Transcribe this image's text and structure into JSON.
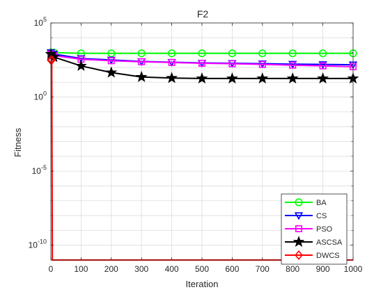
{
  "chart_data": {
    "type": "line",
    "title": "F2",
    "xlabel": "Iteration",
    "ylabel": "Fitness",
    "xlim": [
      0,
      1000
    ],
    "ylim_log10": [
      -11,
      5
    ],
    "y_scale": "log",
    "x_ticks": [
      0,
      100,
      200,
      300,
      400,
      500,
      600,
      700,
      800,
      900,
      1000
    ],
    "x_tick_labels": [
      "0",
      "100",
      "200",
      "300",
      "400",
      "500",
      "600",
      "700",
      "800",
      "900",
      "1000"
    ],
    "y_ticks_log10": [
      -10,
      -5,
      0,
      5
    ],
    "y_tick_labels": [
      {
        "base": "10",
        "exp": "-10"
      },
      {
        "base": "10",
        "exp": "-5"
      },
      {
        "base": "10",
        "exp": "0"
      },
      {
        "base": "10",
        "exp": "5"
      }
    ],
    "grid": true,
    "legend_position": "bottom-right",
    "series": [
      {
        "name": "BA",
        "color": "#00ff00",
        "marker": "circle",
        "x": [
          0,
          10,
          100,
          200,
          300,
          400,
          500,
          600,
          700,
          800,
          900,
          1000
        ],
        "y_log10": [
          3.0,
          3.0,
          2.95,
          2.95,
          2.95,
          2.95,
          2.95,
          2.95,
          2.95,
          2.95,
          2.95,
          2.95
        ]
      },
      {
        "name": "CS",
        "color": "#0000ff",
        "marker": "triangle-down",
        "x": [
          0,
          10,
          100,
          200,
          300,
          400,
          500,
          600,
          700,
          800,
          900,
          1000
        ],
        "y_log10": [
          3.0,
          2.9,
          2.6,
          2.5,
          2.4,
          2.35,
          2.3,
          2.28,
          2.25,
          2.22,
          2.2,
          2.18
        ]
      },
      {
        "name": "PSO",
        "color": "#ff00ff",
        "marker": "square",
        "x": [
          0,
          10,
          100,
          200,
          300,
          400,
          500,
          600,
          700,
          800,
          900,
          1000
        ],
        "y_log10": [
          2.9,
          2.8,
          2.55,
          2.45,
          2.38,
          2.33,
          2.28,
          2.25,
          2.2,
          2.15,
          2.1,
          2.05
        ]
      },
      {
        "name": "ASCSA",
        "color": "#000000",
        "marker": "star",
        "x": [
          0,
          10,
          100,
          200,
          300,
          400,
          500,
          600,
          700,
          800,
          900,
          1000
        ],
        "y_log10": [
          2.9,
          2.7,
          2.1,
          1.65,
          1.35,
          1.28,
          1.25,
          1.25,
          1.25,
          1.25,
          1.25,
          1.25
        ]
      },
      {
        "name": "DWCS",
        "color": "#ff0000",
        "marker": "diamond",
        "x": [
          0,
          3,
          5,
          7,
          1000
        ],
        "y_log10": [
          2.5,
          2.5,
          -11,
          -11,
          -11
        ]
      }
    ]
  }
}
